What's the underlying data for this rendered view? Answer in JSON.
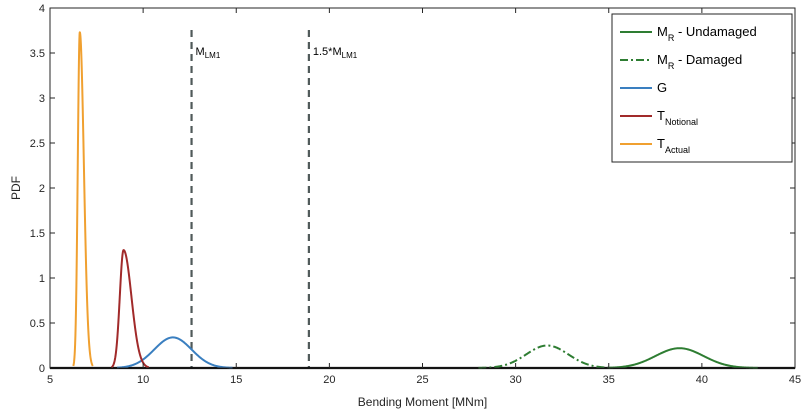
{
  "chart_data": {
    "type": "line",
    "title": "",
    "xlabel": "Bending Moment [MNm]",
    "ylabel": "PDF",
    "xlim": [
      5,
      45
    ],
    "ylim": [
      0,
      4
    ],
    "x_ticks": [
      5,
      10,
      15,
      20,
      25,
      30,
      35,
      40,
      45
    ],
    "y_ticks": [
      0,
      0.5,
      1,
      1.5,
      2,
      2.5,
      3,
      3.5,
      4
    ],
    "x_tick_labels": [
      "5",
      "10",
      "15",
      "20",
      "25",
      "30",
      "35",
      "40",
      "45"
    ],
    "y_tick_labels": [
      "0",
      "0.5",
      "1",
      "1.5",
      "2",
      "2.5",
      "3",
      "3.5",
      "4"
    ],
    "grid": false,
    "legend_position": "top-right",
    "series": [
      {
        "name": "M_R - Undamaged",
        "label_main": "M",
        "label_sub": "R",
        "label_tail": " - Undamaged",
        "color": "#2e7d32",
        "style": "solid",
        "shape": "normal",
        "mean": 38.8,
        "peak": 0.22,
        "support": [
          35.0,
          43.0
        ],
        "x": [
          35.0,
          36.0,
          37.0,
          38.0,
          38.8,
          39.5,
          40.5,
          41.5,
          43.0
        ],
        "y": [
          0.0,
          0.05,
          0.14,
          0.2,
          0.22,
          0.2,
          0.14,
          0.05,
          0.0
        ]
      },
      {
        "name": "M_R - Damaged",
        "label_main": "M",
        "label_sub": "R",
        "label_tail": " - Damaged",
        "color": "#2e7d32",
        "style": "dashdot",
        "shape": "normal",
        "mean": 31.7,
        "peak": 0.25,
        "support": [
          28.0,
          35.0
        ],
        "x": [
          28.0,
          29.0,
          30.0,
          31.0,
          31.7,
          32.5,
          33.5,
          34.5,
          35.0
        ],
        "y": [
          0.0,
          0.05,
          0.16,
          0.23,
          0.25,
          0.22,
          0.12,
          0.03,
          0.0
        ]
      },
      {
        "name": "G",
        "label_main": "G",
        "label_sub": "",
        "label_tail": "",
        "color": "#3a7fc0",
        "style": "solid",
        "shape": "normal",
        "mean": 11.6,
        "peak": 0.34,
        "support": [
          8.6,
          14.8
        ],
        "x": [
          8.6,
          9.5,
          10.5,
          11.0,
          11.6,
          12.3,
          13.0,
          14.0,
          14.8
        ],
        "y": [
          0.0,
          0.08,
          0.24,
          0.31,
          0.34,
          0.3,
          0.19,
          0.06,
          0.0
        ]
      },
      {
        "name": "T_Notional",
        "label_main": "T",
        "label_sub": "Notional",
        "label_tail": "",
        "color": "#a12a2a",
        "style": "solid",
        "shape": "skew",
        "mode": 8.95,
        "peak": 1.31,
        "support": [
          8.3,
          10.3
        ],
        "x": [
          8.3,
          8.6,
          8.8,
          8.95,
          9.1,
          9.4,
          9.7,
          10.0,
          10.3
        ],
        "y": [
          0.0,
          0.45,
          1.1,
          1.31,
          1.15,
          0.5,
          0.15,
          0.03,
          0.0
        ]
      },
      {
        "name": "T_Actual",
        "label_main": "T",
        "label_sub": "Actual",
        "label_tail": "",
        "color": "#f0a030",
        "style": "solid",
        "shape": "skew",
        "mode": 6.6,
        "peak": 3.73,
        "support": [
          6.25,
          7.3
        ],
        "x": [
          6.25,
          6.4,
          6.5,
          6.6,
          6.7,
          6.85,
          7.0,
          7.15,
          7.3
        ],
        "y": [
          0.0,
          1.2,
          3.0,
          3.73,
          3.2,
          1.6,
          0.5,
          0.1,
          0.0
        ]
      }
    ],
    "annotations": [
      {
        "type": "vline",
        "x": 12.6,
        "color": "#505a5a",
        "label_main": "M",
        "label_sub": "LM1"
      },
      {
        "type": "vline",
        "x": 18.9,
        "color": "#505a5a",
        "label_main": "1.5*M",
        "label_sub": "LM1"
      }
    ]
  }
}
